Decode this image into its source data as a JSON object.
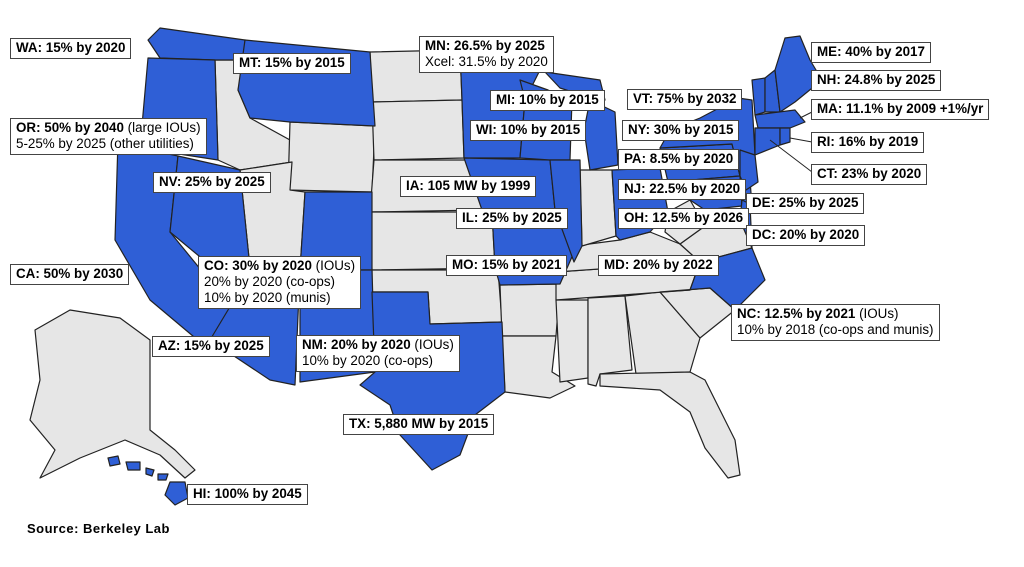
{
  "colors": {
    "rps_state": "#2f5fd6",
    "other_state": "#e6e6e6",
    "outline": "#222222"
  },
  "source": "Source:  Berkeley  Lab",
  "callouts": {
    "wa": {
      "lines": [
        {
          "bold": "WA: 15% by 2020",
          "rest": ""
        }
      ]
    },
    "mt": {
      "lines": [
        {
          "bold": "MT: 15% by 2015",
          "rest": ""
        }
      ]
    },
    "mn": {
      "lines": [
        {
          "bold": "MN: 26.5% by 2025",
          "rest": ""
        },
        {
          "bold": "",
          "rest": "Xcel: 31.5% by 2020"
        }
      ]
    },
    "me": {
      "lines": [
        {
          "bold": "ME: 40% by 2017",
          "rest": ""
        }
      ]
    },
    "nh": {
      "lines": [
        {
          "bold": "NH: 24.8% by 2025",
          "rest": ""
        }
      ]
    },
    "vt": {
      "lines": [
        {
          "bold": "VT: 75% by 2032",
          "rest": ""
        }
      ]
    },
    "mi": {
      "lines": [
        {
          "bold": "MI: 10% by 2015",
          "rest": ""
        }
      ]
    },
    "ma": {
      "lines": [
        {
          "bold": "MA: 11.1% by 2009 +1%/yr",
          "rest": ""
        }
      ]
    },
    "or": {
      "lines": [
        {
          "bold": "OR: 50% by 2040",
          "rest": " (large IOUs)"
        },
        {
          "bold": "",
          "rest": "5-25% by 2025 (other utilities)"
        }
      ]
    },
    "wi": {
      "lines": [
        {
          "bold": "WI: 10% by 2015",
          "rest": ""
        }
      ]
    },
    "ny": {
      "lines": [
        {
          "bold": "NY: 30% by 2015",
          "rest": ""
        }
      ]
    },
    "ri": {
      "lines": [
        {
          "bold": "RI: 16% by 2019",
          "rest": ""
        }
      ]
    },
    "pa": {
      "lines": [
        {
          "bold": "PA: 8.5% by 2020",
          "rest": ""
        }
      ]
    },
    "ct": {
      "lines": [
        {
          "bold": "CT: 23% by 2020",
          "rest": ""
        }
      ]
    },
    "nv": {
      "lines": [
        {
          "bold": "NV: 25% by 2025",
          "rest": ""
        }
      ]
    },
    "ia": {
      "lines": [
        {
          "bold": "IA: 105 MW by 1999",
          "rest": ""
        }
      ]
    },
    "nj": {
      "lines": [
        {
          "bold": "NJ: 22.5% by 2020",
          "rest": ""
        }
      ]
    },
    "de": {
      "lines": [
        {
          "bold": "DE: 25% by 2025",
          "rest": ""
        }
      ]
    },
    "il": {
      "lines": [
        {
          "bold": "IL: 25% by 2025",
          "rest": ""
        }
      ]
    },
    "oh": {
      "lines": [
        {
          "bold": "OH: 12.5% by 2026",
          "rest": ""
        }
      ]
    },
    "dc": {
      "lines": [
        {
          "bold": "DC: 20% by 2020",
          "rest": ""
        }
      ]
    },
    "co": {
      "lines": [
        {
          "bold": "CO: 30% by 2020",
          "rest": " (IOUs)"
        },
        {
          "bold": "",
          "rest": "20% by 2020 (co-ops)"
        },
        {
          "bold": "",
          "rest": "10% by 2020 (munis)"
        }
      ]
    },
    "ca": {
      "lines": [
        {
          "bold": "CA: 50% by 2030",
          "rest": ""
        }
      ]
    },
    "mo": {
      "lines": [
        {
          "bold": "MO: 15% by 2021",
          "rest": ""
        }
      ]
    },
    "md": {
      "lines": [
        {
          "bold": "MD: 20% by 2022",
          "rest": ""
        }
      ]
    },
    "nc": {
      "lines": [
        {
          "bold": "NC: 12.5% by 2021",
          "rest": " (IOUs)"
        },
        {
          "bold": "",
          "rest": "10% by 2018 (co-ops and munis)"
        }
      ]
    },
    "az": {
      "lines": [
        {
          "bold": "AZ: 15% by 2025",
          "rest": ""
        }
      ]
    },
    "nm": {
      "lines": [
        {
          "bold": "NM: 20% by 2020",
          "rest": " (IOUs)"
        },
        {
          "bold": "",
          "rest": "10% by 2020 (co-ops)"
        }
      ]
    },
    "tx": {
      "lines": [
        {
          "bold": "TX: 5,880 MW by 2015",
          "rest": ""
        }
      ]
    },
    "hi": {
      "lines": [
        {
          "bold": "HI: 100% by 2045",
          "rest": ""
        }
      ]
    }
  }
}
